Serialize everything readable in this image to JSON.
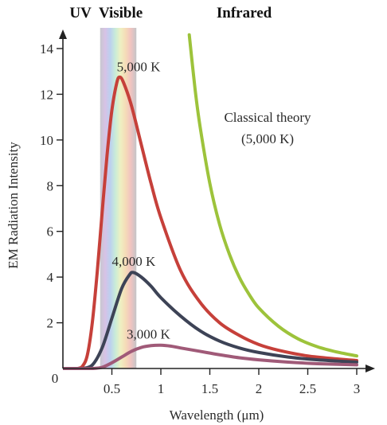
{
  "chart_data": {
    "type": "line",
    "xlabel": "Wavelength (μm)",
    "ylabel": "EM Radiation Intensity",
    "xlim": [
      0,
      3
    ],
    "ylim": [
      0,
      14
    ],
    "x_ticks": [
      {
        "value": 0,
        "label": "0"
      },
      {
        "value": 0.5,
        "label": "0.5"
      },
      {
        "value": 1,
        "label": "1"
      },
      {
        "value": 1.5,
        "label": "1.5"
      },
      {
        "value": 2,
        "label": "2"
      },
      {
        "value": 2.5,
        "label": "2.5"
      },
      {
        "value": 3,
        "label": "3"
      }
    ],
    "y_ticks": [
      {
        "value": 2,
        "label": "2"
      },
      {
        "value": 4,
        "label": "4"
      },
      {
        "value": 6,
        "label": "6"
      },
      {
        "value": 8,
        "label": "8"
      },
      {
        "value": 10,
        "label": "10"
      },
      {
        "value": 12,
        "label": "12"
      },
      {
        "value": 14,
        "label": "14"
      }
    ],
    "grid": false,
    "visible_band": {
      "from": 0.38,
      "to": 0.75
    },
    "band_labels": [
      {
        "text": "UV",
        "x": 0.18
      },
      {
        "text": "Visible",
        "x": 0.59
      },
      {
        "text": "Infrared",
        "x": 1.85
      }
    ],
    "series": [
      {
        "label": "5,000 K",
        "color": "#c6403a",
        "label_at": {
          "x": 0.55,
          "y": 13.0
        },
        "points": [
          [
            0.15,
            0
          ],
          [
            0.2,
            0.1
          ],
          [
            0.25,
            0.6
          ],
          [
            0.3,
            2.0
          ],
          [
            0.35,
            4.2
          ],
          [
            0.4,
            6.8
          ],
          [
            0.45,
            9.3
          ],
          [
            0.5,
            11.3
          ],
          [
            0.55,
            12.5
          ],
          [
            0.58,
            12.75
          ],
          [
            0.62,
            12.5
          ],
          [
            0.7,
            11.5
          ],
          [
            0.8,
            9.8
          ],
          [
            0.9,
            8.1
          ],
          [
            1.0,
            6.6
          ],
          [
            1.2,
            4.3
          ],
          [
            1.4,
            2.9
          ],
          [
            1.6,
            2.0
          ],
          [
            1.8,
            1.45
          ],
          [
            2.0,
            1.05
          ],
          [
            2.2,
            0.8
          ],
          [
            2.5,
            0.55
          ],
          [
            2.8,
            0.42
          ],
          [
            3.0,
            0.35
          ]
        ]
      },
      {
        "label": "4,000 K",
        "color": "#3d4356",
        "label_at": {
          "x": 0.5,
          "y": 4.5
        },
        "points": [
          [
            0.2,
            0
          ],
          [
            0.3,
            0.15
          ],
          [
            0.4,
            0.9
          ],
          [
            0.5,
            2.2
          ],
          [
            0.6,
            3.5
          ],
          [
            0.68,
            4.1
          ],
          [
            0.72,
            4.2
          ],
          [
            0.8,
            4.0
          ],
          [
            0.9,
            3.6
          ],
          [
            1.0,
            3.1
          ],
          [
            1.2,
            2.3
          ],
          [
            1.4,
            1.65
          ],
          [
            1.6,
            1.2
          ],
          [
            1.8,
            0.9
          ],
          [
            2.0,
            0.7
          ],
          [
            2.3,
            0.5
          ],
          [
            2.6,
            0.38
          ],
          [
            3.0,
            0.28
          ]
        ]
      },
      {
        "label": "3,000 K",
        "color": "#a05a78",
        "label_at": {
          "x": 0.65,
          "y": 1.3
        },
        "points": [
          [
            0.3,
            0
          ],
          [
            0.4,
            0.05
          ],
          [
            0.5,
            0.25
          ],
          [
            0.6,
            0.5
          ],
          [
            0.7,
            0.75
          ],
          [
            0.8,
            0.92
          ],
          [
            0.9,
            1.0
          ],
          [
            1.0,
            1.02
          ],
          [
            1.1,
            0.98
          ],
          [
            1.2,
            0.9
          ],
          [
            1.4,
            0.75
          ],
          [
            1.6,
            0.6
          ],
          [
            1.8,
            0.47
          ],
          [
            2.0,
            0.38
          ],
          [
            2.3,
            0.28
          ],
          [
            2.6,
            0.21
          ],
          [
            3.0,
            0.16
          ]
        ]
      },
      {
        "label": "Classical theory\n(5,000 K)",
        "color": "#9dc33b",
        "label_at": {
          "x": 1.85,
          "y": 10.8
        },
        "points": [
          [
            1.29,
            14.6
          ],
          [
            1.35,
            12.2
          ],
          [
            1.4,
            10.6
          ],
          [
            1.5,
            8.1
          ],
          [
            1.6,
            6.3
          ],
          [
            1.7,
            5.0
          ],
          [
            1.8,
            4.0
          ],
          [
            1.9,
            3.25
          ],
          [
            2.0,
            2.65
          ],
          [
            2.2,
            1.85
          ],
          [
            2.4,
            1.3
          ],
          [
            2.6,
            0.95
          ],
          [
            2.8,
            0.72
          ],
          [
            3.0,
            0.55
          ]
        ]
      }
    ]
  }
}
